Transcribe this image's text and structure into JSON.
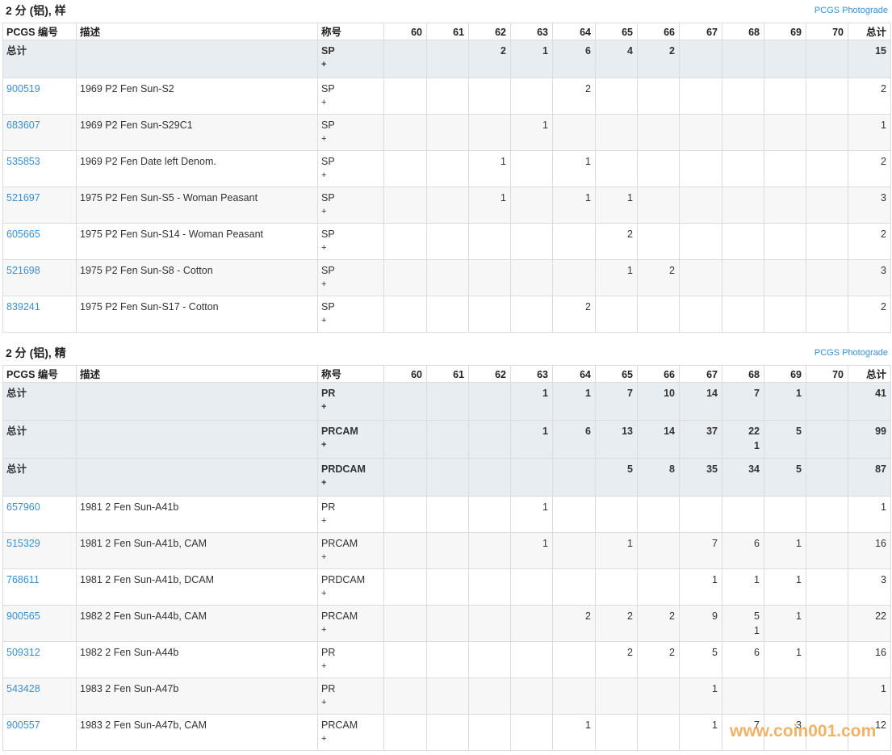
{
  "sections": [
    {
      "title": "2 分 (铝), 样",
      "link": "PCGS Photograde",
      "header": [
        "PCGS 编号",
        "描述",
        "称号",
        60,
        61,
        62,
        63,
        64,
        65,
        66,
        67,
        68,
        69,
        70,
        "总计"
      ],
      "rows": [
        {
          "total_row": true,
          "number": "总计",
          "designation": "SP",
          "plus": "+",
          "grades": [
            null,
            null,
            2,
            1,
            6,
            4,
            2,
            null,
            null,
            null,
            null
          ],
          "total": 15
        },
        {
          "number": "900519",
          "description": "1969 P2 Fen Sun-S2",
          "designation": "SP",
          "plus": "+",
          "grades": [
            null,
            null,
            null,
            null,
            2,
            null,
            null,
            null,
            null,
            null,
            null
          ],
          "total": 2
        },
        {
          "number": "683607",
          "description": "1969 P2 Fen Sun-S29C1",
          "designation": "SP",
          "plus": "+",
          "grades": [
            null,
            null,
            null,
            1,
            null,
            null,
            null,
            null,
            null,
            null,
            null
          ],
          "total": 1
        },
        {
          "number": "535853",
          "description": "1969 P2 Fen Date left Denom.",
          "designation": "SP",
          "plus": "+",
          "grades": [
            null,
            null,
            1,
            null,
            1,
            null,
            null,
            null,
            null,
            null,
            null
          ],
          "total": 2
        },
        {
          "number": "521697",
          "description": "1975 P2 Fen Sun-S5 - Woman Peasant",
          "designation": "SP",
          "plus": "+",
          "grades": [
            null,
            null,
            1,
            null,
            1,
            1,
            null,
            null,
            null,
            null,
            null
          ],
          "total": 3
        },
        {
          "number": "605665",
          "description": "1975 P2 Fen Sun-S14 - Woman Peasant",
          "designation": "SP",
          "plus": "+",
          "grades": [
            null,
            null,
            null,
            null,
            null,
            2,
            null,
            null,
            null,
            null,
            null
          ],
          "total": 2
        },
        {
          "number": "521698",
          "description": "1975 P2 Fen Sun-S8 - Cotton",
          "designation": "SP",
          "plus": "+",
          "grades": [
            null,
            null,
            null,
            null,
            null,
            1,
            2,
            null,
            null,
            null,
            null
          ],
          "total": 3
        },
        {
          "number": "839241",
          "description": "1975 P2 Fen Sun-S17 - Cotton",
          "designation": "SP",
          "plus": "+",
          "grades": [
            null,
            null,
            null,
            null,
            2,
            null,
            null,
            null,
            null,
            null,
            null
          ],
          "total": 2
        }
      ]
    },
    {
      "title": "2 分 (铝), 精",
      "link": "PCGS Photograde",
      "header": [
        "PCGS 编号",
        "描述",
        "称号",
        60,
        61,
        62,
        63,
        64,
        65,
        66,
        67,
        68,
        69,
        70,
        "总计"
      ],
      "rows": [
        {
          "total_row": true,
          "number": "总计",
          "designation": "PR",
          "plus": "+",
          "grades": [
            null,
            null,
            null,
            1,
            1,
            7,
            10,
            14,
            7,
            1,
            null
          ],
          "total": 41
        },
        {
          "total_row": true,
          "number": "总计",
          "designation": "PRCAM",
          "plus": "+",
          "grades": [
            null,
            null,
            null,
            1,
            6,
            13,
            14,
            37,
            22,
            5,
            null
          ],
          "plus_grades": [
            null,
            null,
            null,
            null,
            null,
            null,
            null,
            null,
            1,
            null,
            null
          ],
          "total": 99
        },
        {
          "total_row": true,
          "number": "总计",
          "designation": "PRDCAM",
          "plus": "+",
          "grades": [
            null,
            null,
            null,
            null,
            null,
            5,
            8,
            35,
            34,
            5,
            null
          ],
          "total": 87
        },
        {
          "number": "657960",
          "description": "1981 2 Fen Sun-A41b",
          "designation": "PR",
          "plus": "+",
          "grades": [
            null,
            null,
            null,
            1,
            null,
            null,
            null,
            null,
            null,
            null,
            null
          ],
          "total": 1
        },
        {
          "number": "515329",
          "description": "1981 2 Fen Sun-A41b, CAM",
          "designation": "PRCAM",
          "plus": "+",
          "grades": [
            null,
            null,
            null,
            1,
            null,
            1,
            null,
            7,
            6,
            1,
            null
          ],
          "total": 16
        },
        {
          "number": "768611",
          "description": "1981 2 Fen Sun-A41b, DCAM",
          "designation": "PRDCAM",
          "plus": "+",
          "grades": [
            null,
            null,
            null,
            null,
            null,
            null,
            null,
            1,
            1,
            1,
            null
          ],
          "total": 3
        },
        {
          "number": "900565",
          "description": "1982 2 Fen Sun-A44b, CAM",
          "designation": "PRCAM",
          "plus": "+",
          "grades": [
            null,
            null,
            null,
            null,
            2,
            2,
            2,
            9,
            5,
            1,
            null
          ],
          "plus_grades": [
            null,
            null,
            null,
            null,
            null,
            null,
            null,
            null,
            1,
            null,
            null
          ],
          "total": 22
        },
        {
          "number": "509312",
          "description": "1982 2 Fen Sun-A44b",
          "designation": "PR",
          "plus": "+",
          "grades": [
            null,
            null,
            null,
            null,
            null,
            2,
            2,
            5,
            6,
            1,
            null
          ],
          "total": 16
        },
        {
          "number": "543428",
          "description": "1983 2 Fen Sun-A47b",
          "designation": "PR",
          "plus": "+",
          "grades": [
            null,
            null,
            null,
            null,
            null,
            null,
            null,
            1,
            null,
            null,
            null
          ],
          "total": 1
        },
        {
          "number": "900557",
          "description": "1983 2 Fen Sun-A47b, CAM",
          "designation": "PRCAM",
          "plus": "+",
          "grades": [
            null,
            null,
            null,
            null,
            1,
            null,
            null,
            1,
            7,
            3,
            null
          ],
          "total": 12
        }
      ]
    }
  ],
  "watermark": "www.coin001.com"
}
